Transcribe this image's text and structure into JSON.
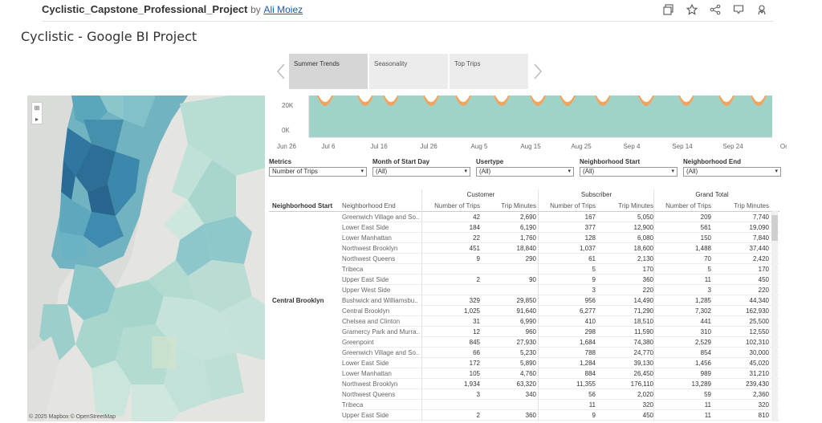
{
  "header": {
    "project_title": "Cyclistic_Capstone_Professional_Project",
    "by": "by",
    "author": "Ali Moiez",
    "icons": [
      "copy-icon",
      "star-icon",
      "share-icon",
      "comment-icon",
      "profile-icon"
    ]
  },
  "dashboard_title": "Cyclistic - Google BI Project",
  "story": {
    "tabs": [
      "Summer Trends",
      "Seasonality",
      "Top Trips"
    ],
    "active": 0
  },
  "map": {
    "credit": "© 2025 Mapbox © OpenStreetMap"
  },
  "chart_data": {
    "type": "area",
    "y_ticks": [
      "20K",
      "0K"
    ],
    "x_ticks": [
      "Jun 26",
      "Jul 6",
      "Jul 16",
      "Jul 26",
      "Aug 5",
      "Aug 15",
      "Aug 25",
      "Sep 4",
      "Sep 14",
      "Sep 24",
      "Oc"
    ],
    "colors": {
      "teal": "#9fd3c7",
      "orange": "#f2a35c"
    }
  },
  "filters": [
    {
      "label": "Metrics",
      "value": "Number of Trips"
    },
    {
      "label": "Month of Start Day",
      "value": "(All)"
    },
    {
      "label": "Usertype",
      "value": "(All)"
    },
    {
      "label": "Neighborhood Start",
      "value": "(All)"
    },
    {
      "label": "Neighborhood End",
      "value": "(All)"
    }
  ],
  "table": {
    "groups": [
      "Customer",
      "Subscriber",
      "Grand Total"
    ],
    "headers": [
      "Neighborhood Start",
      "Neighborhood End",
      "Number of Trips",
      "Trip Minutes",
      "Number of Trips",
      "Trip Minutes",
      "Number of Trips",
      "Trip Minutes"
    ],
    "rows": [
      [
        "",
        "Greenwich Village and So..",
        "42",
        "2,690",
        "167",
        "5,050",
        "209",
        "7,740"
      ],
      [
        "",
        "Lower East Side",
        "184",
        "6,190",
        "377",
        "12,900",
        "561",
        "19,090"
      ],
      [
        "",
        "Lower Manhattan",
        "22",
        "1,760",
        "128",
        "6,080",
        "150",
        "7,840"
      ],
      [
        "",
        "Northwest Brooklyn",
        "451",
        "18,840",
        "1,037",
        "18,600",
        "1,488",
        "37,440"
      ],
      [
        "",
        "Northwest Queens",
        "9",
        "290",
        "61",
        "2,130",
        "70",
        "2,420"
      ],
      [
        "",
        "Tribeca",
        "",
        "",
        "5",
        "170",
        "5",
        "170"
      ],
      [
        "",
        "Upper East Side",
        "2",
        "90",
        "9",
        "360",
        "11",
        "450"
      ],
      [
        "",
        "Upper West Side",
        "",
        "",
        "3",
        "220",
        "3",
        "220"
      ],
      [
        "Central Brooklyn",
        "Bushwick and Williamsbu..",
        "329",
        "29,850",
        "956",
        "14,490",
        "1,285",
        "44,340"
      ],
      [
        "",
        "Central Brooklyn",
        "1,025",
        "91,640",
        "6,277",
        "71,290",
        "7,302",
        "162,930"
      ],
      [
        "",
        "Chelsea and Clinton",
        "31",
        "6,990",
        "410",
        "18,510",
        "441",
        "25,500"
      ],
      [
        "",
        "Gramercy Park and Murra..",
        "12",
        "960",
        "298",
        "11,590",
        "310",
        "12,550"
      ],
      [
        "",
        "Greenpoint",
        "845",
        "27,930",
        "1,684",
        "74,380",
        "2,529",
        "102,310"
      ],
      [
        "",
        "Greenwich Village and So..",
        "66",
        "5,230",
        "788",
        "24,770",
        "854",
        "30,000"
      ],
      [
        "",
        "Lower East Side",
        "172",
        "5,890",
        "1,284",
        "39,130",
        "1,456",
        "45,020"
      ],
      [
        "",
        "Lower Manhattan",
        "105",
        "4,760",
        "884",
        "26,450",
        "989",
        "31,210"
      ],
      [
        "",
        "Northwest Brooklyn",
        "1,934",
        "63,320",
        "11,355",
        "176,110",
        "13,289",
        "239,430"
      ],
      [
        "",
        "Northwest Queens",
        "3",
        "340",
        "56",
        "2,020",
        "59",
        "2,360"
      ],
      [
        "",
        "Tribeca",
        "",
        "",
        "11",
        "320",
        "11",
        "320"
      ],
      [
        "",
        "Upper East Side",
        "2",
        "360",
        "9",
        "450",
        "11",
        "810"
      ]
    ]
  }
}
